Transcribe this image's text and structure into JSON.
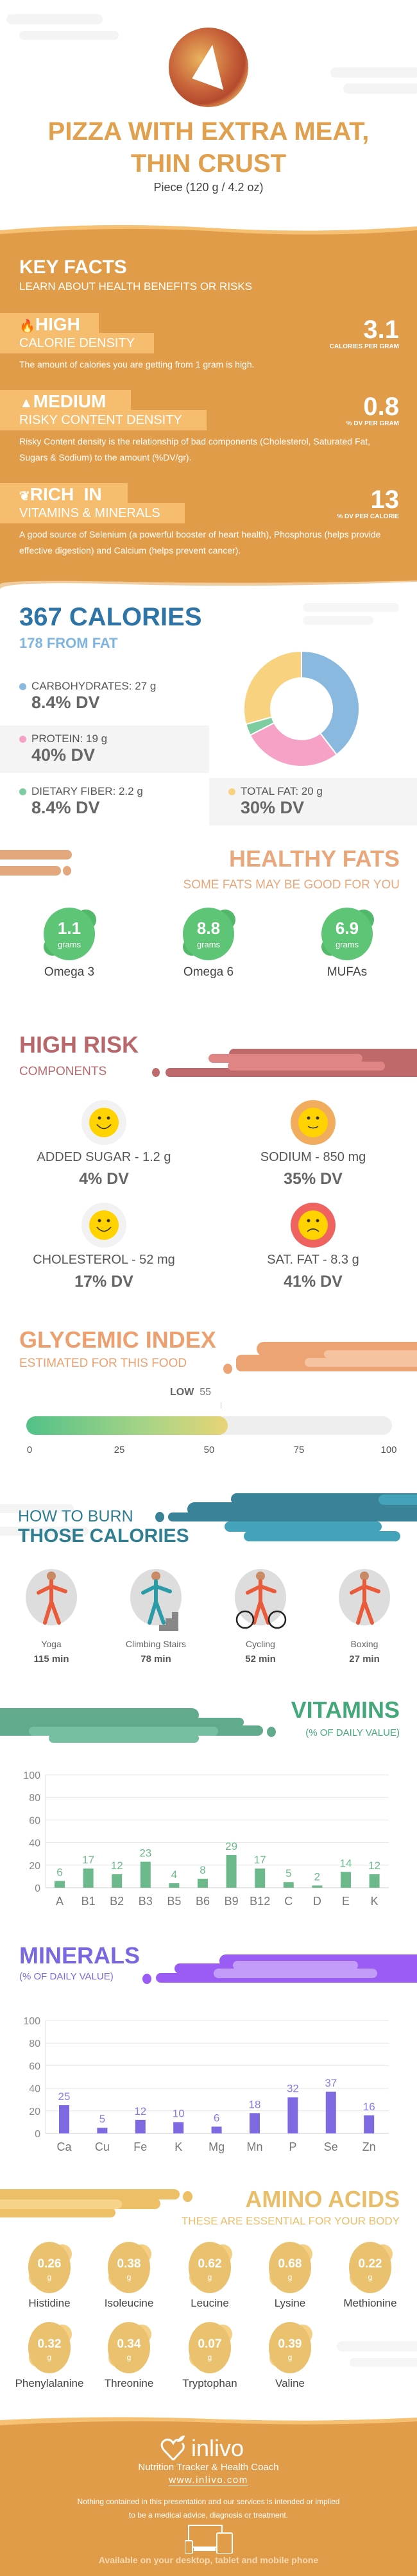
{
  "header": {
    "title_line1": "PIZZA WITH EXTRA MEAT,",
    "title_line2": "THIN CRUST",
    "serving": "Piece (120 g / 4.2 oz)",
    "image": "pizza-photo"
  },
  "key_facts": {
    "title": "KEY FACTS",
    "subtitle": "LEARN ABOUT HEALTH BENEFITS OR RISKS",
    "items": [
      {
        "icon": "flame-icon",
        "level": "HIGH",
        "label": "CALORIE DENSITY",
        "value": "3.1",
        "unit": "CALORIES PER GRAM",
        "desc": "The amount of calories you are getting from 1 gram is high."
      },
      {
        "icon": "warning-icon",
        "level": "MEDIUM",
        "label": "RISKY CONTENT DENSITY",
        "value": "0.8",
        "unit": "% DV PER GRAM",
        "desc": "Risky Content density is the relationship of bad components (Cholesterol, Saturated Fat, Sugars & Sodium) to the amount (%DV/gr)."
      },
      {
        "icon": "leaf-icon",
        "level": "RICH  IN",
        "label": "VITAMINS & MINERALS",
        "value": "13",
        "unit": "% DV PER CALORIE",
        "desc": "A good source of Selenium (a powerful booster of heart health), Phosphorus (helps provide effective digestion) and Calcium (helps prevent cancer)."
      }
    ]
  },
  "calories": {
    "title": "367 CALORIES",
    "subtitle": "178 FROM FAT",
    "macros": [
      {
        "label": "CARBOHYDRATES: 27 g",
        "dv": "8.4% DV",
        "grams": 27,
        "color": "#8AB9E0"
      },
      {
        "label": "PROTEIN: 19 g",
        "dv": "40% DV",
        "grams": 19,
        "color": "#F6A2C6"
      },
      {
        "label": "DIETARY FIBER: 2.2 g",
        "dv": "8.4% DV",
        "grams": 2.2,
        "color": "#7ECDA0"
      },
      {
        "label": "TOTAL FAT: 20 g",
        "dv": "30% DV",
        "grams": 20,
        "color": "#F8D27E"
      }
    ]
  },
  "healthy_fats": {
    "title": "HEALTHY FATS",
    "subtitle": "SOME FATS MAY BE GOOD FOR YOU",
    "unit": "grams",
    "items": [
      {
        "value": "1.1",
        "name": "Omega 3"
      },
      {
        "value": "8.8",
        "name": "Omega 6"
      },
      {
        "value": "6.9",
        "name": "MUFAs"
      }
    ]
  },
  "high_risk": {
    "title": "HIGH RISK",
    "subtitle": "COMPONENTS",
    "items": [
      {
        "label": "ADDED SUGAR - 1.2 g",
        "dv": "4% DV",
        "mood": "happy",
        "ring": "#F2F2F2"
      },
      {
        "label": "SODIUM - 850 mg",
        "dv": "35% DV",
        "mood": "neutral",
        "ring": "#F2AC5E"
      },
      {
        "label": "CHOLESTEROL - 52 mg",
        "dv": "17% DV",
        "mood": "happy",
        "ring": "#F2F2F2"
      },
      {
        "label": "SAT. FAT - 8.3 g",
        "dv": "41% DV",
        "mood": "sad",
        "ring": "#EE6360"
      }
    ]
  },
  "glycemic": {
    "title": "GLYCEMIC INDEX",
    "subtitle": "ESTIMATED FOR THIS FOOD",
    "level": "LOW",
    "value": 55,
    "value_label": "55",
    "ticks": [
      "0",
      "25",
      "50",
      "75",
      "100"
    ]
  },
  "burn": {
    "title_line1": "HOW TO BURN",
    "title_line2": "THOSE CALORIES",
    "activities": [
      {
        "name": "Yoga",
        "minutes": "115 min",
        "icon": "yoga-icon"
      },
      {
        "name": "Climbing Stairs",
        "minutes": "78 min",
        "icon": "climbing-stairs-icon"
      },
      {
        "name": "Cycling",
        "minutes": "52 min",
        "icon": "cycling-icon"
      },
      {
        "name": "Boxing",
        "minutes": "27 min",
        "icon": "boxing-icon"
      }
    ]
  },
  "chart_data": [
    {
      "type": "bar",
      "title": "VITAMINS",
      "subtitle": "(% OF DAILY VALUE)",
      "categories": [
        "A",
        "B1",
        "B2",
        "B3",
        "B5",
        "B6",
        "B9",
        "B12",
        "C",
        "D",
        "E",
        "K"
      ],
      "values": [
        6,
        17,
        12,
        23,
        4,
        8,
        29,
        17,
        5,
        2,
        14,
        12
      ],
      "ylim": [
        0,
        100
      ],
      "yticks": [
        "0",
        "20",
        "40",
        "60",
        "80",
        "100"
      ],
      "grid": true,
      "color": "#6CBA8C",
      "label_color": "#6CBA8C"
    },
    {
      "type": "bar",
      "title": "MINERALS",
      "subtitle": "(% OF DAILY VALUE)",
      "categories": [
        "Ca",
        "Cu",
        "Fe",
        "K",
        "Mg",
        "Mn",
        "P",
        "Se",
        "Zn"
      ],
      "values": [
        25,
        5,
        12,
        10,
        6,
        18,
        32,
        37,
        16
      ],
      "ylim": [
        0,
        100
      ],
      "yticks": [
        "0",
        "20",
        "40",
        "60",
        "80",
        "100"
      ],
      "grid": true,
      "color": "#7E69E0",
      "label_color": "#8C7BE6"
    }
  ],
  "amino": {
    "title": "AMINO ACIDS",
    "subtitle": "THESE ARE ESSENTIAL FOR YOUR BODY",
    "unit": "g",
    "items": [
      {
        "value": "0.26",
        "name": "Histidine"
      },
      {
        "value": "0.38",
        "name": "Isoleucine"
      },
      {
        "value": "0.62",
        "name": "Leucine"
      },
      {
        "value": "0.68",
        "name": "Lysine"
      },
      {
        "value": "0.22",
        "name": "Methionine"
      },
      {
        "value": "0.32",
        "name": "Phenylalanine"
      },
      {
        "value": "0.34",
        "name": "Threonine"
      },
      {
        "value": "0.07",
        "name": "Tryptophan"
      },
      {
        "value": "0.39",
        "name": "Valine"
      }
    ]
  },
  "footer": {
    "brand": "inlivo",
    "tagline": "Nutrition Tracker & Health Coach",
    "url": "www.inlivo.com",
    "disclaimer_line1": "Nothing contained in this presentation and our services is intended or implied",
    "disclaimer_line2": "to be a medical advice, diagnosis or treatment.",
    "available": "Available on your desktop, tablet and mobile phone"
  }
}
